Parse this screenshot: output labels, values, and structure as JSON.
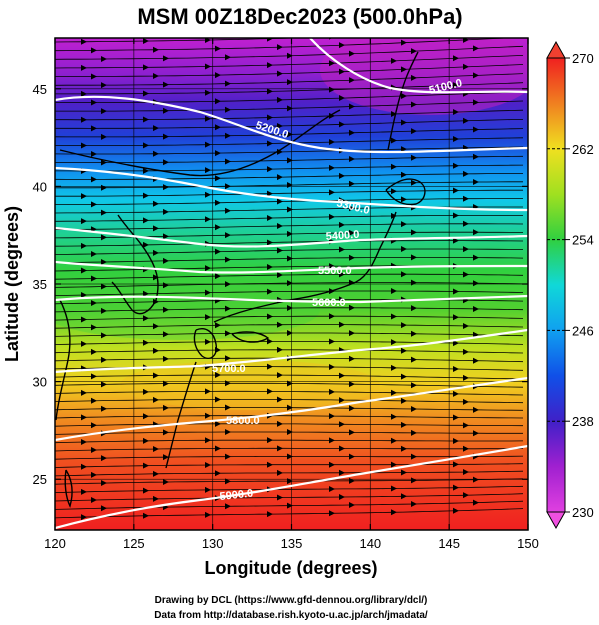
{
  "title": "MSM 00Z18Dec2023 (500.0hPa)",
  "x_axis": {
    "label": "Longitude (degrees)",
    "range": [
      120,
      150
    ],
    "ticks": [
      "120",
      "125",
      "130",
      "135",
      "140",
      "145",
      "150"
    ]
  },
  "y_axis": {
    "label": "Latitude  (degrees)",
    "range": [
      22.4,
      47.6
    ],
    "ticks": [
      "25",
      "30",
      "35",
      "40",
      "45"
    ]
  },
  "colorbar": {
    "range": [
      230,
      270
    ],
    "ticks": [
      "230",
      "238",
      "246",
      "254",
      "262",
      "270"
    ],
    "colors": [
      "#e040e0",
      "#b020d0",
      "#5010c0",
      "#1030e0",
      "#1090f0",
      "#10d0e0",
      "#20d080",
      "#30d030",
      "#a0e020",
      "#f0f020",
      "#f0b020",
      "#f06020",
      "#f02020"
    ]
  },
  "contours": [
    {
      "label": "5100.0"
    },
    {
      "label": "5200.0"
    },
    {
      "label": "5300.0"
    },
    {
      "label": "5400.0"
    },
    {
      "label": "5500.0"
    },
    {
      "label": "5600.0"
    },
    {
      "label": "5700.0"
    },
    {
      "label": "5800.0"
    },
    {
      "label": "5900.0"
    }
  ],
  "credits": [
    "Drawing by DCL (https://www.gfd-dennou.org/library/dcl/)",
    "Data from http://database.rish.kyoto-u.ac.jp/arch/jmadata/"
  ]
}
